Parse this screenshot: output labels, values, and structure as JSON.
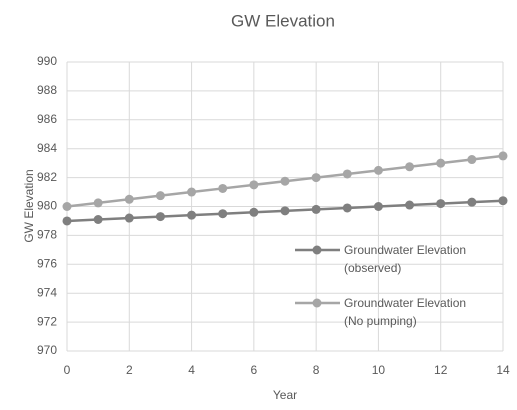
{
  "chart_data": {
    "type": "line",
    "title": "GW Elevation",
    "x_label": "Year",
    "y_label": "GW Elevation",
    "x": [
      0,
      1,
      2,
      3,
      4,
      5,
      6,
      7,
      8,
      9,
      10,
      11,
      12,
      13,
      14
    ],
    "series": [
      {
        "name": "Groundwater Elevation (observed)",
        "color": "#7f7f7f",
        "values": [
          979.0,
          979.1,
          979.2,
          979.3,
          979.4,
          979.5,
          979.6,
          979.7,
          979.8,
          979.9,
          980.0,
          980.1,
          980.2,
          980.3,
          980.4
        ]
      },
      {
        "name": "Groundwater Elevation (No pumping)",
        "color": "#a6a6a6",
        "values": [
          980.0,
          980.25,
          980.5,
          980.75,
          981.0,
          981.25,
          981.5,
          981.75,
          982.0,
          982.25,
          982.5,
          982.75,
          983.0,
          983.25,
          983.5
        ]
      }
    ],
    "xlim": [
      0,
      14
    ],
    "xticks": [
      0,
      2,
      4,
      6,
      8,
      10,
      12,
      14
    ],
    "ylim": [
      970,
      990
    ],
    "yticks": [
      970,
      972,
      974,
      976,
      978,
      980,
      982,
      984,
      986,
      988,
      990
    ],
    "grid": true
  }
}
